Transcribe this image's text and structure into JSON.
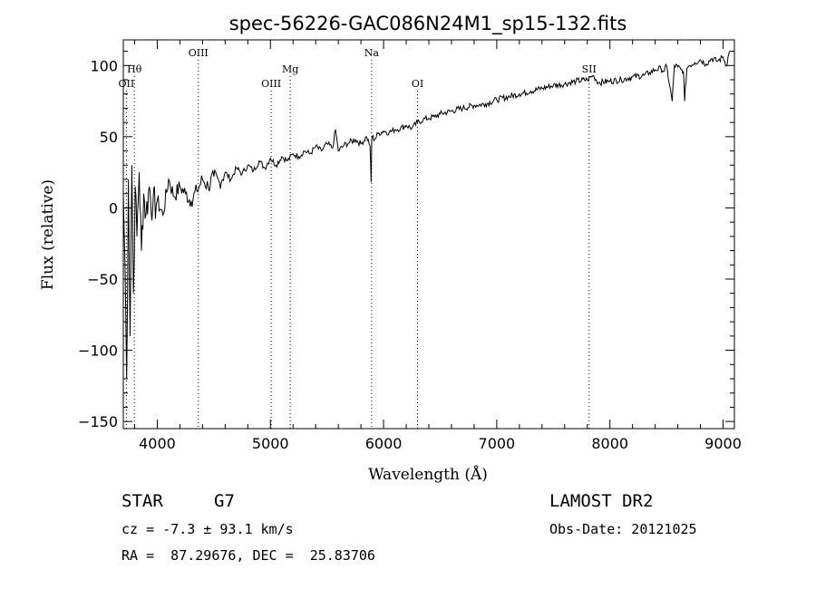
{
  "chart_data": {
    "type": "line",
    "title": "spec-56226-GAC086N24M1_sp15-132.fits",
    "xlabel": "Wavelength (Å)",
    "ylabel": "Flux (relative)",
    "xlim": [
      3700,
      9100
    ],
    "ylim": [
      -155,
      118
    ],
    "x_ticks": [
      4000,
      5000,
      6000,
      7000,
      8000,
      9000
    ],
    "y_ticks": [
      -150,
      -100,
      -50,
      0,
      50,
      100
    ],
    "grid": false,
    "line_color": "#000000",
    "series": [
      {
        "x": [
          3700,
          3715,
          3730,
          3745,
          3760,
          3775,
          3790,
          3805,
          3820,
          3840,
          3860,
          3880,
          3900,
          3930,
          3960,
          4000,
          4050,
          4100,
          4150,
          4200,
          4250,
          4300,
          4350,
          4400,
          4450,
          4500,
          4550,
          4600,
          4650,
          4700,
          4750,
          4800,
          4850,
          4900,
          4950,
          5000,
          5050,
          5100,
          5150,
          5200,
          5250,
          5300,
          5350,
          5400,
          5450,
          5500,
          5550,
          5575,
          5600,
          5650,
          5700,
          5750,
          5800,
          5850,
          5880,
          5890,
          5895,
          5900,
          5920,
          5950,
          6000,
          6050,
          6100,
          6150,
          6200,
          6250,
          6300,
          6350,
          6400,
          6450,
          6500,
          6600,
          6700,
          6800,
          6900,
          7000,
          7100,
          7200,
          7300,
          7400,
          7500,
          7600,
          7700,
          7800,
          7850,
          7900,
          8000,
          8100,
          8200,
          8300,
          8350,
          8400,
          8450,
          8480,
          8500,
          8530,
          8550,
          8570,
          8600,
          8630,
          8650,
          8660,
          8680,
          8700,
          8750,
          8800,
          8850,
          8900,
          8950,
          9000,
          9030,
          9050,
          9060
        ],
        "y": [
          10,
          -40,
          -120,
          20,
          -90,
          30,
          -60,
          15,
          -20,
          25,
          -30,
          10,
          -5,
          15,
          0,
          5,
          -5,
          20,
          8,
          15,
          10,
          5,
          12,
          20,
          15,
          22,
          18,
          25,
          20,
          28,
          24,
          30,
          26,
          33,
          28,
          35,
          30,
          36,
          33,
          38,
          36,
          40,
          38,
          43,
          40,
          45,
          42,
          55,
          40,
          44,
          46,
          48,
          45,
          50,
          44,
          18,
          48,
          50,
          48,
          52,
          54,
          53,
          55,
          56,
          58,
          56,
          60,
          62,
          63,
          64,
          66,
          68,
          70,
          72,
          73,
          76,
          78,
          80,
          82,
          84,
          86,
          87,
          89,
          90,
          93,
          88,
          89,
          90,
          92,
          93,
          95,
          97,
          98,
          96,
          100,
          85,
          75,
          100,
          99,
          97,
          96,
          75,
          98,
          100,
          102,
          104,
          101,
          105,
          103,
          106,
          100,
          108,
          110
        ]
      }
    ],
    "line_markers": [
      {
        "label": "OII",
        "x": 3727,
        "label_row": "low"
      },
      {
        "label": "Hθ",
        "x": 3798,
        "label_row": "mid"
      },
      {
        "label": "OIII",
        "x": 4363,
        "label_row": "high"
      },
      {
        "label": "OIII",
        "x": 5007,
        "label_row": "low"
      },
      {
        "label": "Mg",
        "x": 5175,
        "label_row": "mid"
      },
      {
        "label": "Na",
        "x": 5894,
        "label_row": "high"
      },
      {
        "label": "OI",
        "x": 6300,
        "label_row": "low"
      },
      {
        "label": "SII",
        "x": 7816,
        "label_row": "mid"
      }
    ]
  },
  "info": {
    "object_class": "STAR",
    "subclass": "G7",
    "survey": "LAMOST DR2",
    "redshift_line": "cz = -7.3 ± 93.1 km/s",
    "obs_date_line": "Obs-Date: 20121025",
    "coords_line": "RA =  87.29676, DEC =  25.83706"
  }
}
